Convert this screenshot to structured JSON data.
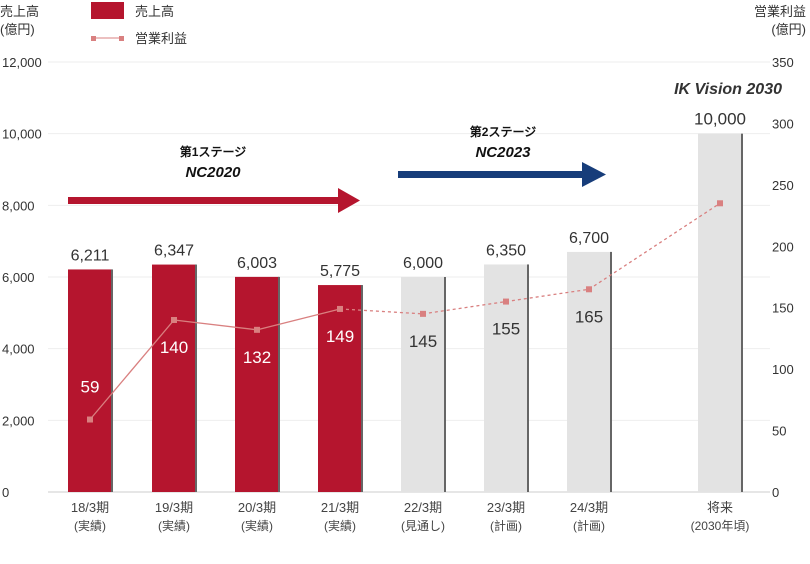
{
  "chart_data": {
    "type": "bar",
    "left_axis_label": [
      "売上高",
      "(億円)"
    ],
    "right_axis_label": [
      "営業利益",
      "(億円)"
    ],
    "legend": {
      "sales": "売上高",
      "profit": "営業利益"
    },
    "categories": [
      [
        "18/3期",
        "(実績)"
      ],
      [
        "19/3期",
        "(実績)"
      ],
      [
        "20/3期",
        "(実績)"
      ],
      [
        "21/3期",
        "(実績)"
      ],
      [
        "22/3期",
        "(見通し)"
      ],
      [
        "23/3期",
        "(計画)"
      ],
      [
        "24/3期",
        "(計画)"
      ],
      [
        "将来",
        "(2030年頃)"
      ]
    ],
    "series": [
      {
        "name": "売上高",
        "axis": "left",
        "values": [
          6211,
          6347,
          6003,
          5775,
          6000,
          6350,
          6700,
          10000
        ],
        "labels": [
          "6,211",
          "6,347",
          "6,003",
          "5,775",
          "6,000",
          "6,350",
          "6,700",
          "10,000"
        ],
        "actual_count": 4
      },
      {
        "name": "営業利益",
        "axis": "right",
        "values": [
          59,
          140,
          132,
          149,
          145,
          155,
          165,
          235
        ],
        "labels": [
          "59",
          "140",
          "132",
          "149",
          "145",
          "155",
          "165",
          ""
        ]
      }
    ],
    "ylim_left": [
      0,
      12000
    ],
    "yticks_left": [
      "0",
      "2,000",
      "4,000",
      "6,000",
      "8,000",
      "10,000",
      "12,000"
    ],
    "ylim_right": [
      0,
      350
    ],
    "yticks_right": [
      "0",
      "50",
      "100",
      "150",
      "200",
      "250",
      "300",
      "350"
    ],
    "annotations": {
      "stage1": "第1ステージ",
      "stage1_name": "NC2020",
      "stage2": "第2ステージ",
      "stage2_name": "NC2023",
      "vision": "IK Vision 2030"
    },
    "colors": {
      "actual": "#b5152e",
      "plan": "#e3e3e3",
      "edge": "#666666",
      "profit": "#d98080",
      "arrow1": "#b5152e",
      "arrow2": "#173d7a"
    }
  }
}
